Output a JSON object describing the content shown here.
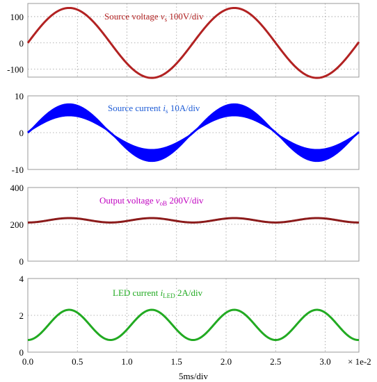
{
  "chart_data": [
    {
      "type": "line",
      "ylim": [
        -130,
        150
      ],
      "yticks": [
        "100",
        "0",
        "-100"
      ],
      "ytick_values": [
        100,
        0,
        -100
      ],
      "annotation": {
        "prefix": "Source voltage ",
        "symbol": "v",
        "sub": "s",
        "suffix": " 100V/div"
      },
      "color": "#b22222",
      "series": [
        {
          "waveform": "sine",
          "amplitude": 133,
          "offset": 0,
          "frequency_hz": 60,
          "phase_deg": 0,
          "t_range": [
            0.0,
            0.0334
          ],
          "fill_band": 0
        }
      ]
    },
    {
      "type": "line",
      "ylim": [
        -10,
        10
      ],
      "yticks": [
        "10",
        "0",
        "-10"
      ],
      "ytick_values": [
        10,
        0,
        -10
      ],
      "annotation": {
        "prefix": "Source current ",
        "symbol": "i",
        "sub": "s",
        "suffix": " 10A/div"
      },
      "color": "#0000ff",
      "series": [
        {
          "waveform": "sine",
          "amplitude": 6.2,
          "offset": 0,
          "frequency_hz": 60,
          "phase_deg": 0,
          "t_range": [
            0.0,
            0.0334
          ],
          "fill_band": 1.7
        }
      ]
    },
    {
      "type": "line",
      "ylim": [
        0,
        400
      ],
      "yticks": [
        "400",
        "200",
        "0"
      ],
      "ytick_values": [
        400,
        200,
        0
      ],
      "annotation": {
        "prefix": "Output voltage ",
        "symbol": "v",
        "sub": "oB",
        "suffix": " 200V/div"
      },
      "color": "#8b1a1a",
      "annotation_color": "#c000c0",
      "series": [
        {
          "waveform": "ripple",
          "mean": 222,
          "amplitude": 12,
          "frequency_hz": 120,
          "phase_deg": 0,
          "t_range": [
            0.0,
            0.0334
          ],
          "fill_band": 0
        }
      ]
    },
    {
      "type": "line",
      "ylim": [
        0,
        4
      ],
      "yticks": [
        "4",
        "2",
        "0"
      ],
      "ytick_values": [
        4,
        2,
        0
      ],
      "annotation": {
        "prefix": "LED current ",
        "symbol": "i",
        "sub": "LED",
        "suffix": " 2A/div"
      },
      "color": "#22aa22",
      "series": [
        {
          "waveform": "ripple",
          "mean": 1.48,
          "amplitude": 0.82,
          "frequency_hz": 120,
          "phase_deg": 0,
          "t_range": [
            0.0,
            0.0334
          ],
          "fill_band": 0
        }
      ]
    }
  ],
  "xaxis": {
    "ticks": [
      "0.0",
      "0.5",
      "1.0",
      "1.5",
      "2.0",
      "2.5",
      "3.0"
    ],
    "tick_values": [
      0.0,
      0.5,
      1.0,
      1.5,
      2.0,
      2.5,
      3.0
    ],
    "xlim": [
      0.0,
      3.34
    ],
    "scale_label": "× 1e-2",
    "xlabel": "5ms/div"
  }
}
